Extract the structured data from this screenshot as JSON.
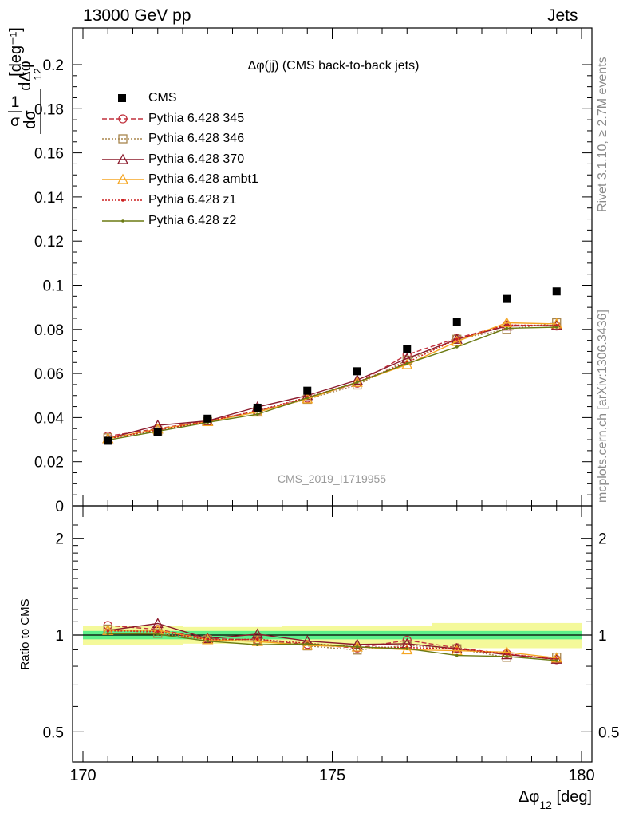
{
  "header": {
    "left": "13000 GeV pp",
    "right": "Jets"
  },
  "side_labels": {
    "rivet": "Rivet 3.1.10, ≥ 2.7M events",
    "mcplots": "mcplots.cern.ch [arXiv:1306.3436]"
  },
  "colors": {
    "cms": "#000000",
    "p345": "#c1313d",
    "p346": "#a8864d",
    "p370": "#8b1a2c",
    "ambt1": "#f5a623",
    "z1": "#cc1f1f",
    "z2": "#6b7a12",
    "band_outer": "#f4f99a",
    "band_inner": "#5ef08a"
  },
  "chart_data": {
    "type": "line",
    "title": "Δφ(jj) (CMS back-to-back jets)",
    "watermark": "CMS_2019_I1719955",
    "xlabel": "Δφ₁₂ [deg]",
    "ylabel": "1/σ dσ/dΔφ₁₂ [deg⁻¹]",
    "ratio_ylabel": "Ratio to CMS",
    "xlim": [
      170,
      180
    ],
    "ylim": [
      0,
      0.215
    ],
    "ratio_ylim": [
      0.4,
      2.3
    ],
    "ratio_scale": "log",
    "x_ticks": [
      "170",
      "175",
      "180"
    ],
    "y_ticks": [
      "0",
      "0.02",
      "0.04",
      "0.06",
      "0.08",
      "0.1",
      "0.12",
      "0.14",
      "0.16",
      "0.18",
      "0.2"
    ],
    "ratio_ticks": [
      "0.5",
      "1",
      "2"
    ],
    "x": [
      170.5,
      171.5,
      172.5,
      173.5,
      174.5,
      175.5,
      176.5,
      177.5,
      178.5,
      179.5
    ],
    "data": {
      "name": "CMS",
      "values": [
        0.0295,
        0.0336,
        0.0395,
        0.0445,
        0.0522,
        0.061,
        0.0711,
        0.0833,
        0.0938,
        0.0972
      ]
    },
    "series": [
      {
        "name": "Pythia 6.428 345",
        "values": [
          0.0316,
          0.035,
          0.0385,
          0.043,
          0.0488,
          0.0556,
          0.0685,
          0.076,
          0.082,
          0.0815
        ]
      },
      {
        "name": "Pythia 6.428 346",
        "values": [
          0.0308,
          0.034,
          0.0382,
          0.043,
          0.0483,
          0.0548,
          0.066,
          0.0755,
          0.08,
          0.083
        ]
      },
      {
        "name": "Pythia 6.428 370",
        "values": [
          0.0305,
          0.0365,
          0.0385,
          0.0448,
          0.05,
          0.057,
          0.0668,
          0.0755,
          0.0815,
          0.0818
        ]
      },
      {
        "name": "Pythia 6.428 ambt1",
        "values": [
          0.0305,
          0.0348,
          0.0382,
          0.0425,
          0.0485,
          0.056,
          0.064,
          0.0745,
          0.083,
          0.0825
        ]
      },
      {
        "name": "Pythia 6.428 z1",
        "values": [
          0.0304,
          0.0345,
          0.0382,
          0.0432,
          0.0492,
          0.056,
          0.065,
          0.0755,
          0.082,
          0.0818
        ]
      },
      {
        "name": "Pythia 6.428 z2",
        "values": [
          0.0298,
          0.0338,
          0.0378,
          0.0415,
          0.049,
          0.056,
          0.0645,
          0.072,
          0.0805,
          0.081
        ]
      }
    ],
    "ratio_band": {
      "inner": [
        0.03,
        0.03,
        0.03,
        0.03,
        0.03,
        0.03,
        0.03,
        0.03,
        0.03,
        0.03
      ],
      "outer": [
        0.07,
        0.07,
        0.06,
        0.06,
        0.07,
        0.07,
        0.07,
        0.09,
        0.09,
        0.09
      ]
    },
    "legend": [
      "CMS",
      "Pythia 6.428 345",
      "Pythia 6.428 346",
      "Pythia 6.428 370",
      "Pythia 6.428 ambt1",
      "Pythia 6.428 z1",
      "Pythia 6.428 z2"
    ],
    "legend_position": "top-left"
  }
}
